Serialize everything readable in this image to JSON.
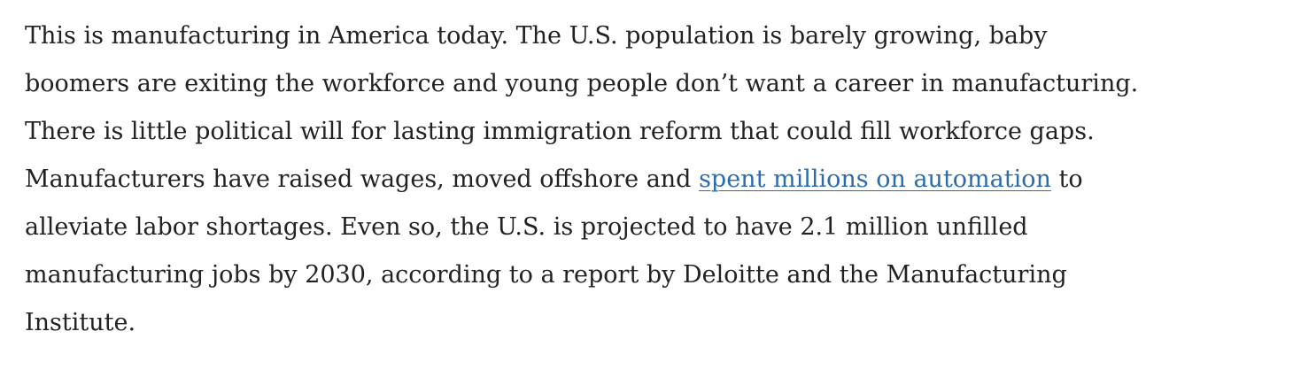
{
  "paragraph": {
    "line_1": "This is manufacturing in America today. The U.S. population is barely growing, baby",
    "line_2": "boomers are exiting the workforce and young people don’t want a career in manufacturing.",
    "line_3": "There is little political will for lasting immigration reform that could fill workforce gaps.",
    "line_4": {
      "before": "Manufacturers have raised wages, moved offshore and",
      "link": "spent millions on automation",
      "after": "to"
    },
    "line_5": "alleviate labor shortages. Even so, the U.S. is projected to have 2.1 million unfilled",
    "line_6": "manufacturing jobs by 2030, according to a report by Deloitte and the Manufacturing",
    "line_7": "Institute."
  }
}
